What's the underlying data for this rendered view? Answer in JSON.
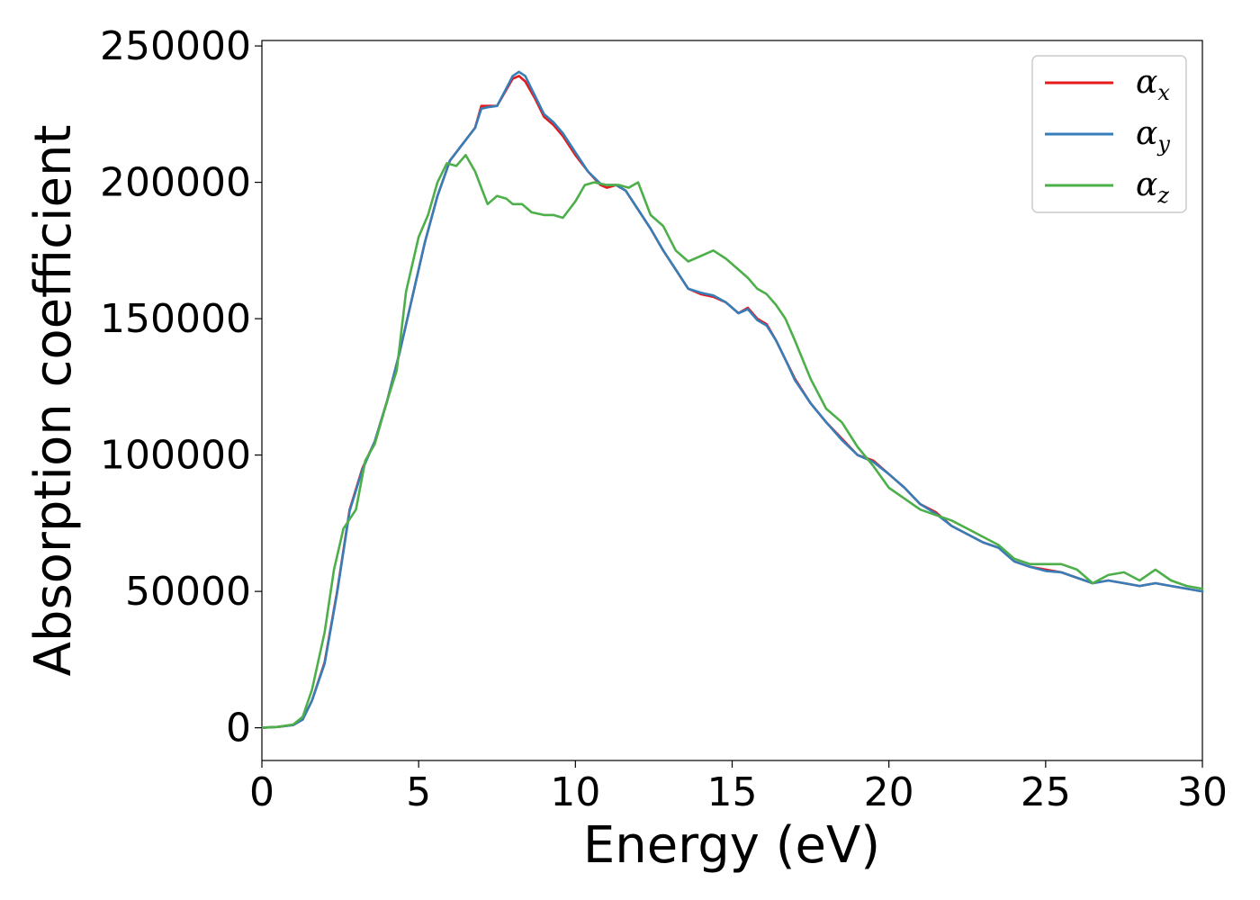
{
  "chart_data": {
    "type": "line",
    "xlabel": "Energy (eV)",
    "ylabel": "Absorption coefficient",
    "xlim": [
      0,
      30
    ],
    "ylim": [
      -12000,
      252000
    ],
    "xticks": [
      0,
      5,
      10,
      15,
      20,
      25,
      30
    ],
    "yticks": [
      0,
      50000,
      100000,
      150000,
      200000,
      250000
    ],
    "grid": false,
    "legend_position": "top-right",
    "series": [
      {
        "name": "α_x",
        "label_main": "α",
        "label_sub": "x",
        "color": "#e41a1c",
        "x": [
          0,
          0.5,
          1,
          1.3,
          1.6,
          2,
          2.4,
          2.8,
          3.2,
          3.6,
          4,
          4.4,
          4.8,
          5.2,
          5.6,
          6,
          6.4,
          6.8,
          7,
          7.2,
          7.5,
          7.8,
          8,
          8.2,
          8.4,
          8.7,
          9,
          9.3,
          9.6,
          10,
          10.4,
          10.8,
          11,
          11.3,
          11.6,
          12,
          12.4,
          12.8,
          13.2,
          13.6,
          14,
          14.4,
          14.8,
          15.2,
          15.5,
          15.8,
          16.1,
          16.4,
          16.7,
          17,
          17.5,
          18,
          18.5,
          19,
          19.5,
          20,
          20.5,
          21,
          21.5,
          22,
          22.5,
          23,
          23.5,
          24,
          24.5,
          25,
          25.5,
          26,
          26.5,
          27,
          27.5,
          28,
          28.5,
          29,
          29.5,
          30
        ],
        "y": [
          0,
          300,
          1000,
          3000,
          10000,
          24000,
          50000,
          80000,
          95000,
          105000,
          120000,
          138000,
          158000,
          178000,
          195000,
          208000,
          214000,
          220000,
          228000,
          228000,
          228000,
          234000,
          238000,
          239000,
          237000,
          231000,
          224000,
          221000,
          217000,
          210000,
          204000,
          199000,
          198000,
          199000,
          197000,
          190000,
          183000,
          175000,
          168000,
          161000,
          159000,
          158000,
          156000,
          152000,
          154000,
          150000,
          148000,
          142000,
          135000,
          128000,
          119000,
          112000,
          106000,
          100000,
          98000,
          93000,
          88000,
          82000,
          79000,
          74000,
          71000,
          68000,
          66000,
          61000,
          59000,
          58000,
          57000,
          55000,
          53000,
          54000,
          53000,
          52000,
          53000,
          52000,
          51000,
          50000
        ]
      },
      {
        "name": "α_y",
        "label_main": "α",
        "label_sub": "y",
        "color": "#377eb8",
        "x": [
          0,
          0.5,
          1,
          1.3,
          1.6,
          2,
          2.4,
          2.8,
          3.2,
          3.6,
          4,
          4.4,
          4.8,
          5.2,
          5.6,
          6,
          6.4,
          6.8,
          7,
          7.2,
          7.5,
          7.8,
          8,
          8.2,
          8.4,
          8.7,
          9,
          9.3,
          9.6,
          10,
          10.4,
          10.8,
          11,
          11.3,
          11.6,
          12,
          12.4,
          12.8,
          13.2,
          13.6,
          14,
          14.4,
          14.8,
          15.2,
          15.5,
          15.8,
          16.1,
          16.4,
          16.7,
          17,
          17.5,
          18,
          18.5,
          19,
          19.5,
          20,
          20.5,
          21,
          21.5,
          22,
          22.5,
          23,
          23.5,
          24,
          24.5,
          25,
          25.5,
          26,
          26.5,
          27,
          27.5,
          28,
          28.5,
          29,
          29.5,
          30
        ],
        "y": [
          0,
          300,
          1000,
          3000,
          10000,
          23500,
          49500,
          79500,
          94500,
          105000,
          120000,
          138000,
          158000,
          178000,
          195000,
          208000,
          214000,
          220000,
          227000,
          227500,
          228000,
          234500,
          239000,
          240500,
          239000,
          232000,
          225000,
          222000,
          218000,
          211000,
          204000,
          199500,
          199000,
          199000,
          197000,
          190000,
          183000,
          175000,
          168000,
          161000,
          159500,
          158500,
          156000,
          152000,
          153500,
          149500,
          147500,
          142000,
          135000,
          127500,
          119000,
          112000,
          105500,
          100000,
          97500,
          93000,
          88000,
          82000,
          78500,
          74000,
          71000,
          68000,
          66000,
          61000,
          59000,
          57500,
          57000,
          55000,
          53000,
          54000,
          53000,
          52000,
          53000,
          52000,
          51000,
          50000
        ]
      },
      {
        "name": "α_z",
        "label_main": "α",
        "label_sub": "z",
        "color": "#4daf4a",
        "x": [
          0,
          0.5,
          1,
          1.3,
          1.6,
          2,
          2.3,
          2.6,
          3,
          3.3,
          3.6,
          4,
          4.3,
          4.6,
          5,
          5.3,
          5.6,
          5.9,
          6.2,
          6.5,
          6.8,
          7,
          7.2,
          7.5,
          7.8,
          8,
          8.3,
          8.6,
          9,
          9.3,
          9.6,
          10,
          10.3,
          10.6,
          11,
          11.4,
          11.7,
          12,
          12.4,
          12.8,
          13.2,
          13.6,
          14,
          14.4,
          14.8,
          15.2,
          15.5,
          15.8,
          16.1,
          16.4,
          16.7,
          17,
          17.5,
          18,
          18.5,
          19,
          19.5,
          20,
          20.5,
          21,
          21.5,
          22,
          22.5,
          23,
          23.5,
          24,
          24.5,
          25,
          25.5,
          26,
          26.5,
          27,
          27.5,
          28,
          28.5,
          29,
          29.5,
          30
        ],
        "y": [
          0,
          300,
          1200,
          4000,
          14000,
          35000,
          58000,
          73000,
          80000,
          98000,
          104000,
          120000,
          131000,
          160000,
          180000,
          188000,
          200000,
          207000,
          206000,
          210000,
          204000,
          198000,
          192000,
          195000,
          194000,
          192000,
          192000,
          189000,
          188000,
          188000,
          187000,
          193000,
          199000,
          200000,
          199000,
          199000,
          198000,
          200000,
          188000,
          184000,
          175000,
          171000,
          173000,
          175000,
          172000,
          168000,
          165000,
          161000,
          159000,
          155000,
          150000,
          142000,
          128000,
          117000,
          112000,
          103000,
          96000,
          88000,
          84000,
          80000,
          78000,
          76000,
          73000,
          70000,
          67000,
          62000,
          60000,
          60000,
          60000,
          58000,
          53000,
          56000,
          57000,
          54000,
          58000,
          54000,
          52000,
          51000
        ]
      }
    ]
  }
}
